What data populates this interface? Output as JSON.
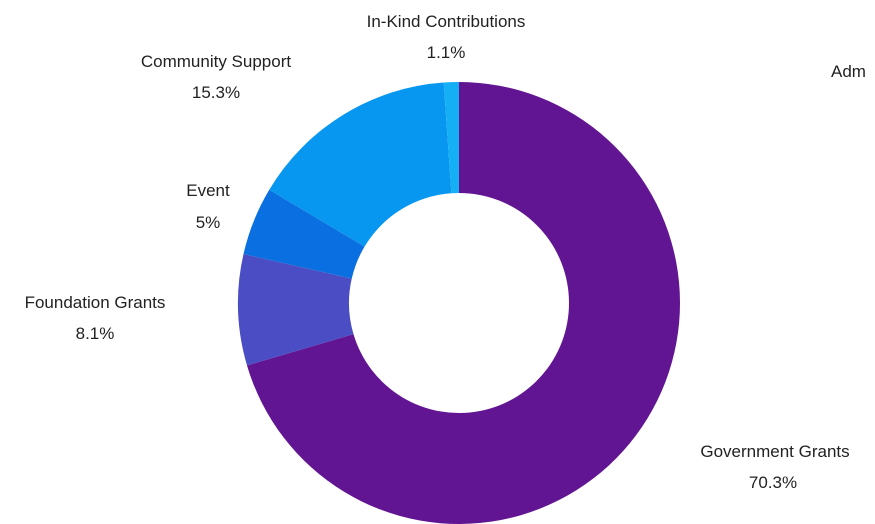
{
  "chart_data": {
    "type": "pie",
    "donut": true,
    "categories": [
      "Government Grants",
      "Foundation Grants",
      "Event",
      "Community Support",
      "In-Kind Contributions",
      "Administration"
    ],
    "values": [
      70.3,
      8.1,
      5.0,
      15.3,
      1.1,
      0
    ],
    "value_labels": [
      "70.3%",
      "8.1%",
      "5%",
      "15.3%",
      "1.1%",
      ""
    ],
    "visible_label_text": {
      "administration_partial": "Adm"
    },
    "colors": [
      "#621593",
      "#4a4dc4",
      "#0a6fe0",
      "#0796f0",
      "#14aff5",
      "#2ec3f7"
    ],
    "start_angle": "12 o'clock",
    "direction": "clockwise"
  }
}
